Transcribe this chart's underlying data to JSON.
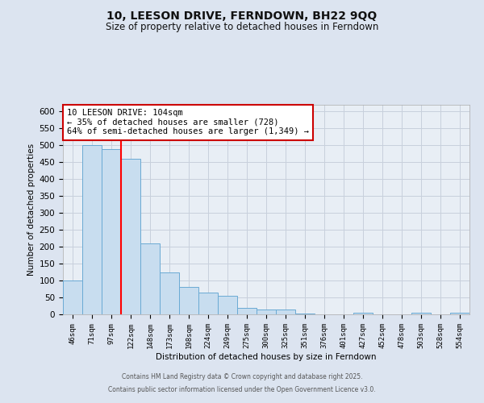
{
  "title_line1": "10, LEESON DRIVE, FERNDOWN, BH22 9QQ",
  "title_line2": "Size of property relative to detached houses in Ferndown",
  "xlabel": "Distribution of detached houses by size in Ferndown",
  "ylabel": "Number of detached properties",
  "categories": [
    "46sqm",
    "71sqm",
    "97sqm",
    "122sqm",
    "148sqm",
    "173sqm",
    "198sqm",
    "224sqm",
    "249sqm",
    "275sqm",
    "300sqm",
    "325sqm",
    "351sqm",
    "376sqm",
    "401sqm",
    "427sqm",
    "452sqm",
    "478sqm",
    "503sqm",
    "528sqm",
    "554sqm"
  ],
  "values": [
    100,
    500,
    490,
    460,
    210,
    125,
    80,
    65,
    55,
    20,
    15,
    15,
    3,
    0,
    0,
    5,
    0,
    0,
    5,
    0,
    5
  ],
  "bar_color": "#c8ddef",
  "bar_edge_color": "#6aaad4",
  "bar_width": 1.0,
  "red_line_x": 2.5,
  "annotation_text": "10 LEESON DRIVE: 104sqm\n← 35% of detached houses are smaller (728)\n64% of semi-detached houses are larger (1,349) →",
  "annotation_box_color": "white",
  "annotation_box_edge_color": "#cc0000",
  "ylim": [
    0,
    620
  ],
  "yticks": [
    0,
    50,
    100,
    150,
    200,
    250,
    300,
    350,
    400,
    450,
    500,
    550,
    600
  ],
  "background_color": "#dce4f0",
  "plot_background": "#e8eef5",
  "grid_color": "#c8d0dc",
  "footer_line1": "Contains HM Land Registry data © Crown copyright and database right 2025.",
  "footer_line2": "Contains public sector information licensed under the Open Government Licence v3.0."
}
